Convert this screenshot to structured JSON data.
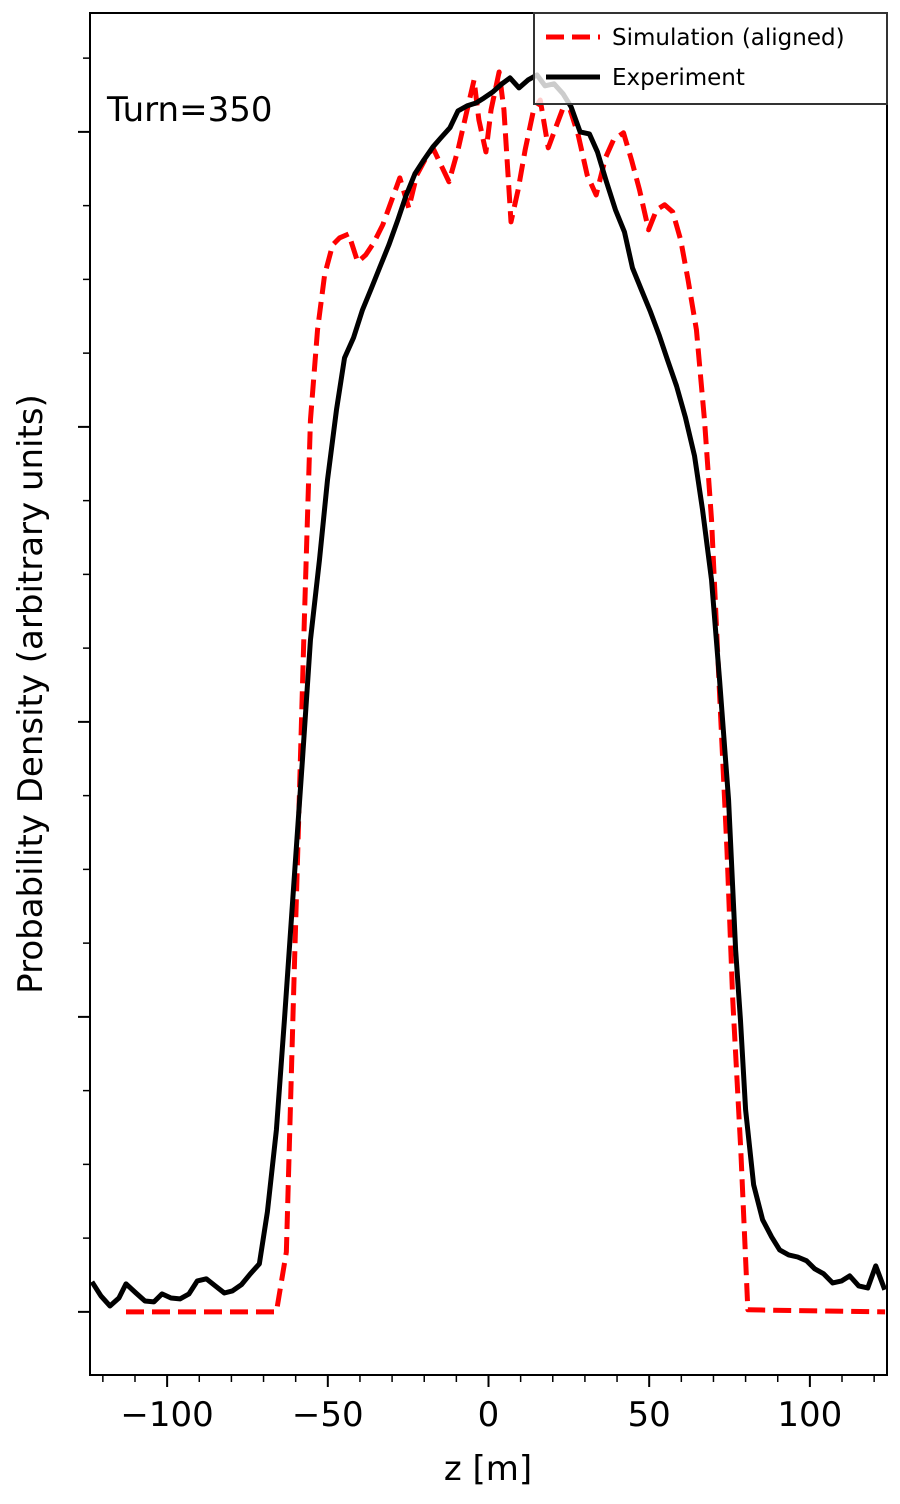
{
  "chart_data": {
    "type": "line",
    "annotation": "Turn=350",
    "x_label": "z [m]",
    "y_label": "Probability Density (arbitrary units)",
    "xlim": [
      -124,
      124
    ],
    "ylim": [
      -0.214,
      4.403
    ],
    "xticks": [
      {
        "value": -100,
        "label": "−100"
      },
      {
        "value": -50,
        "label": "−50"
      },
      0,
      50,
      100
    ],
    "x_minor_ticks": [
      -120,
      -110,
      -90,
      -80,
      -70,
      -60,
      -40,
      -30,
      -20,
      -10,
      10,
      20,
      30,
      40,
      60,
      70,
      80,
      90,
      110,
      120
    ],
    "yticks": [
      0,
      1,
      2,
      3,
      4
    ],
    "y_tick_labels_shown": false,
    "y_minor_ticks": [
      0.25,
      0.5,
      0.75,
      1.25,
      1.5,
      1.75,
      2.25,
      2.5,
      2.75,
      3.25,
      3.5,
      3.75,
      4.25
    ],
    "grid": false,
    "legend": "upper right",
    "series": [
      {
        "name": "Simulation (aligned)",
        "color": "#ff0000",
        "style": "dashed",
        "x": [
          -112.8,
          -66.0,
          -62.9,
          -60.7,
          -58.8,
          -57.3,
          -55.4,
          -53.2,
          -51.0,
          -48.5,
          -46.3,
          -43.5,
          -40.7,
          -38.2,
          -35.7,
          -32.9,
          -30.1,
          -27.6,
          -24.8,
          -22.3,
          -19.8,
          -17.3,
          -14.8,
          -12.3,
          -9.5,
          -7.0,
          -4.5,
          -3.0,
          -0.8,
          0.8,
          3.3,
          4.8,
          7.0,
          9.2,
          11.4,
          13.9,
          16.1,
          18.6,
          21.1,
          23.2,
          25.4,
          27.9,
          30.7,
          33.5,
          36.4,
          38.9,
          42.0,
          44.5,
          47.0,
          49.8,
          52.3,
          54.8,
          57.3,
          59.8,
          62.1,
          64.7,
          67.2,
          69.4,
          71.7,
          74.2,
          76.0,
          78.5,
          80.7,
          123.4
        ],
        "values": [
          0,
          0,
          0.203,
          1.058,
          1.769,
          2.346,
          3.024,
          3.329,
          3.515,
          3.617,
          3.641,
          3.654,
          3.559,
          3.583,
          3.624,
          3.685,
          3.769,
          3.844,
          3.742,
          3.854,
          3.905,
          3.946,
          3.888,
          3.831,
          3.939,
          4.058,
          4.176,
          4.041,
          3.932,
          4.075,
          4.203,
          4.075,
          3.695,
          3.803,
          3.939,
          4.068,
          4.108,
          3.946,
          4.02,
          4.081,
          4.075,
          3.99,
          3.854,
          3.786,
          3.912,
          3.973,
          3.997,
          3.905,
          3.803,
          3.668,
          3.736,
          3.753,
          3.729,
          3.634,
          3.498,
          3.329,
          3.024,
          2.685,
          2.142,
          1.566,
          1.058,
          0.549,
          0.007,
          0
        ]
      },
      {
        "name": "Experiment",
        "color": "#000000",
        "style": "solid",
        "x": [
          -123.4,
          -120.6,
          -117.8,
          -115.0,
          -112.8,
          -109.7,
          -106.9,
          -104.1,
          -101.6,
          -98.8,
          -96.0,
          -93.2,
          -90.6,
          -87.8,
          -85.0,
          -82.2,
          -79.7,
          -76.9,
          -74.1,
          -71.3,
          -68.8,
          -66.0,
          -63.5,
          -60.7,
          -57.9,
          -55.4,
          -52.6,
          -50.1,
          -47.3,
          -44.8,
          -42.0,
          -39.2,
          -36.4,
          -33.9,
          -31.0,
          -28.2,
          -25.7,
          -22.9,
          -20.1,
          -17.3,
          -14.8,
          -12.0,
          -9.5,
          -6.7,
          -3.9,
          -1.4,
          1.4,
          4.2,
          6.7,
          9.5,
          12.3,
          15.1,
          17.6,
          20.4,
          23.2,
          25.7,
          28.5,
          31.4,
          33.9,
          36.7,
          39.5,
          42.3,
          44.8,
          47.6,
          50.4,
          53.2,
          55.7,
          58.5,
          61.3,
          64.1,
          66.6,
          69.4,
          71.9,
          74.7,
          76.9,
          78.4,
          80.0,
          82.5,
          85.3,
          88.1,
          90.6,
          93.4,
          96.2,
          99.0,
          101.5,
          104.3,
          107.1,
          109.9,
          112.4,
          115.2,
          118.0,
          120.5,
          123.3
        ],
        "values": [
          0.102,
          0.054,
          0.02,
          0.047,
          0.095,
          0.064,
          0.037,
          0.034,
          0.061,
          0.047,
          0.044,
          0.061,
          0.105,
          0.112,
          0.088,
          0.064,
          0.071,
          0.092,
          0.129,
          0.163,
          0.339,
          0.617,
          0.99,
          1.431,
          1.871,
          2.278,
          2.549,
          2.82,
          3.058,
          3.234,
          3.302,
          3.397,
          3.471,
          3.539,
          3.617,
          3.702,
          3.783,
          3.858,
          3.905,
          3.949,
          3.98,
          4.014,
          4.071,
          4.088,
          4.098,
          4.115,
          4.136,
          4.163,
          4.183,
          4.149,
          4.176,
          4.193,
          4.156,
          4.163,
          4.129,
          4.085,
          4.0,
          3.993,
          3.932,
          3.831,
          3.736,
          3.661,
          3.539,
          3.464,
          3.39,
          3.308,
          3.227,
          3.139,
          3.031,
          2.902,
          2.719,
          2.481,
          2.142,
          1.736,
          1.227,
          0.99,
          0.685,
          0.431,
          0.312,
          0.254,
          0.21,
          0.193,
          0.186,
          0.173,
          0.146,
          0.129,
          0.098,
          0.105,
          0.122,
          0.088,
          0.081,
          0.156,
          0.075
        ]
      }
    ]
  }
}
